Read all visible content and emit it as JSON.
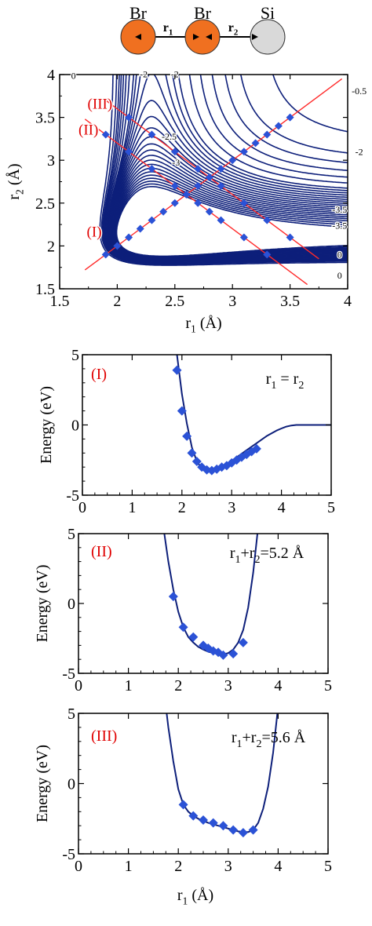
{
  "molecule": {
    "atoms": [
      {
        "symbol": "Br",
        "color": "#f07020"
      },
      {
        "symbol": "Br",
        "color": "#f07020"
      },
      {
        "symbol": "Si",
        "color": "#d9d9d9"
      }
    ],
    "bond_labels": [
      {
        "main": "r",
        "sub": "1"
      },
      {
        "main": "r",
        "sub": "2"
      }
    ]
  },
  "colors": {
    "contour": "#0d1f7a",
    "marker": "#2b52d6",
    "cut_line": "#ff2a2a",
    "cut_label": "#e00000",
    "axis": "#000000"
  },
  "chart_data": [
    {
      "id": "contour",
      "type": "contour",
      "xlabel": {
        "main": "r",
        "sub": "1",
        "unit": " (Å)"
      },
      "ylabel": {
        "main": "r",
        "sub": "2",
        "unit": " (Å)"
      },
      "xlim": [
        1.5,
        4
      ],
      "ylim": [
        1.5,
        4
      ],
      "xticks": [
        "1.5",
        "2",
        "2.5",
        "3",
        "3.5",
        "4"
      ],
      "yticks": [
        "1.5",
        "2",
        "2.5",
        "3",
        "3.5",
        "4"
      ],
      "contour_levels": [
        -3.7,
        -3.6,
        -3.5,
        -3.4,
        -3.3,
        -3.2,
        -3.1,
        -3.0,
        -2.9,
        -2.8,
        -2.7,
        -2.6,
        -2.5,
        -2.4,
        -2.3,
        -2.2,
        -2.1,
        -2.0,
        -1.9,
        -1.8,
        -1.6,
        -1.4,
        -1.2,
        -1.0,
        -0.8,
        -0.5,
        0
      ],
      "contour_labels": [
        {
          "text": "0",
          "x": 1.62,
          "y": 3.95
        },
        {
          "text": "-2",
          "x": 2.23,
          "y": 3.97
        },
        {
          "text": "-2",
          "x": 2.5,
          "y": 3.97
        },
        {
          "text": "-0.5",
          "x": 4.1,
          "y": 3.77
        },
        {
          "text": "-2.5",
          "x": 2.45,
          "y": 3.24
        },
        {
          "text": "-3",
          "x": 2.51,
          "y": 2.94
        },
        {
          "text": "-2",
          "x": 4.1,
          "y": 3.06
        },
        {
          "text": "-3.5",
          "x": 3.93,
          "y": 2.39
        },
        {
          "text": "-3.5",
          "x": 3.93,
          "y": 2.2
        },
        {
          "text": "0",
          "x": 3.93,
          "y": 1.86
        },
        {
          "text": "0",
          "x": 3.93,
          "y": 1.62
        }
      ],
      "cut_lines": [
        {
          "label": "(I)",
          "from": [
            1.72,
            1.72
          ],
          "to": [
            3.95,
            3.95
          ],
          "label_at": [
            1.8,
            2.11
          ]
        },
        {
          "label": "(II)",
          "from": [
            1.72,
            3.48
          ],
          "to": [
            3.65,
            1.55
          ],
          "label_at": [
            1.75,
            3.3
          ]
        },
        {
          "label": "(III)",
          "from": [
            1.9,
            3.7
          ],
          "to": [
            3.75,
            1.85
          ],
          "label_at": [
            1.85,
            3.6
          ]
        }
      ],
      "points": [
        {
          "cut": "I",
          "x": [
            1.9,
            2.0,
            2.1,
            2.2,
            2.3,
            2.4,
            2.5,
            2.6,
            2.7,
            2.8,
            2.9,
            3.0,
            3.1,
            3.2,
            3.3,
            3.4,
            3.5
          ],
          "y": [
            1.9,
            2.0,
            2.1,
            2.2,
            2.3,
            2.4,
            2.5,
            2.6,
            2.7,
            2.8,
            2.9,
            3.0,
            3.1,
            3.2,
            3.3,
            3.4,
            3.5
          ]
        },
        {
          "cut": "II",
          "x": [
            1.9,
            2.1,
            2.3,
            2.5,
            2.6,
            2.7,
            2.8,
            2.9,
            3.1,
            3.3
          ],
          "y": [
            3.3,
            3.1,
            2.9,
            2.7,
            2.6,
            2.5,
            2.4,
            2.3,
            2.1,
            1.9
          ]
        },
        {
          "cut": "III",
          "x": [
            2.1,
            2.3,
            2.5,
            2.7,
            2.9,
            3.1,
            3.3,
            3.5
          ],
          "y": [
            3.5,
            3.3,
            3.1,
            2.9,
            2.7,
            2.5,
            2.3,
            2.1
          ]
        }
      ]
    },
    {
      "id": "cut-I",
      "type": "line",
      "tag": "(I)",
      "condition": {
        "parts": [
          {
            "t": "r"
          },
          {
            "t": "1",
            "sub": true
          },
          {
            "t": " = r"
          },
          {
            "t": "2",
            "sub": true
          }
        ]
      },
      "xlim": [
        0,
        5
      ],
      "ylim": [
        -5,
        5
      ],
      "xticks": [
        "0",
        "1",
        "2",
        "3",
        "4",
        "5"
      ],
      "yticks": [
        "-5",
        "0",
        "5"
      ],
      "ylabel": "Energy (eV)",
      "curve": {
        "x": [
          1.9,
          2.0,
          2.1,
          2.2,
          2.3,
          2.4,
          2.5,
          2.6,
          2.7,
          2.8,
          2.9,
          3.0,
          3.1,
          3.2,
          3.3,
          3.4,
          3.5,
          3.6,
          3.7,
          3.8,
          3.9,
          4.0,
          4.1,
          4.2,
          4.3,
          4.4,
          4.6,
          4.8,
          5.0,
          5.2
        ],
        "y": [
          5.0,
          2.2,
          0.1,
          -1.6,
          -2.6,
          -3.1,
          -3.3,
          -3.35,
          -3.25,
          -3.05,
          -2.8,
          -2.55,
          -2.3,
          -2.05,
          -1.8,
          -1.55,
          -1.3,
          -1.05,
          -0.8,
          -0.6,
          -0.4,
          -0.25,
          -0.12,
          -0.04,
          0.0,
          0.0,
          0.0,
          0.0,
          0.0,
          0.0
        ]
      },
      "points": {
        "x": [
          1.9,
          2.0,
          2.1,
          2.2,
          2.3,
          2.4,
          2.5,
          2.6,
          2.7,
          2.8,
          2.9,
          3.0,
          3.1,
          3.2,
          3.3,
          3.4,
          3.5
        ],
        "y": [
          3.9,
          1.0,
          -0.8,
          -2.0,
          -2.6,
          -3.0,
          -3.2,
          -3.25,
          -3.15,
          -3.0,
          -2.9,
          -2.7,
          -2.5,
          -2.3,
          -2.1,
          -1.9,
          -1.7
        ]
      }
    },
    {
      "id": "cut-II",
      "type": "line",
      "tag": "(II)",
      "condition": {
        "parts": [
          {
            "t": "r"
          },
          {
            "t": "1",
            "sub": true
          },
          {
            "t": "+r"
          },
          {
            "t": "2",
            "sub": true
          },
          {
            "t": "=5.2 Å"
          }
        ]
      },
      "xlim": [
        0,
        5
      ],
      "ylim": [
        -5,
        5
      ],
      "xticks": [
        "0",
        "1",
        "2",
        "3",
        "4",
        "5"
      ],
      "yticks": [
        "-5",
        "0",
        "5"
      ],
      "ylabel": "Energy (eV)",
      "curve": {
        "x": [
          1.7,
          1.8,
          1.9,
          2.0,
          2.1,
          2.2,
          2.3,
          2.4,
          2.5,
          2.6,
          2.7,
          2.8,
          2.9,
          3.0,
          3.1,
          3.2,
          3.3,
          3.4,
          3.5,
          3.6
        ],
        "y": [
          5.5,
          3.0,
          1.0,
          -0.6,
          -1.7,
          -2.4,
          -2.8,
          -3.1,
          -3.3,
          -3.45,
          -3.55,
          -3.62,
          -3.65,
          -3.55,
          -3.3,
          -2.8,
          -1.9,
          -0.3,
          2.2,
          5.5
        ]
      },
      "points": {
        "x": [
          1.9,
          2.1,
          2.3,
          2.5,
          2.6,
          2.7,
          2.8,
          2.9,
          3.1,
          3.3
        ],
        "y": [
          0.5,
          -1.7,
          -2.4,
          -3.0,
          -3.2,
          -3.4,
          -3.5,
          -3.7,
          -3.6,
          -2.8
        ]
      }
    },
    {
      "id": "cut-III",
      "type": "line",
      "tag": "(III)",
      "condition": {
        "parts": [
          {
            "t": "r"
          },
          {
            "t": "1",
            "sub": true
          },
          {
            "t": "+r"
          },
          {
            "t": "2",
            "sub": true
          },
          {
            "t": "=5.6 Å"
          }
        ]
      },
      "xlim": [
        0,
        5
      ],
      "ylim": [
        -5,
        5
      ],
      "xticks": [
        "0",
        "1",
        "2",
        "3",
        "4",
        "5"
      ],
      "yticks": [
        "-5",
        "0",
        "5"
      ],
      "ylabel": "Energy (eV)",
      "xlabel": {
        "main": "r",
        "sub": "1",
        "unit": " (Å)"
      },
      "curve": {
        "x": [
          1.75,
          1.8,
          1.9,
          2.0,
          2.1,
          2.2,
          2.3,
          2.4,
          2.5,
          2.6,
          2.7,
          2.8,
          2.9,
          3.0,
          3.1,
          3.2,
          3.3,
          3.4,
          3.5,
          3.6,
          3.7,
          3.8,
          3.9,
          4.0
        ],
        "y": [
          5.5,
          4.0,
          1.6,
          -0.4,
          -1.5,
          -2.0,
          -2.3,
          -2.5,
          -2.65,
          -2.8,
          -2.9,
          -3.0,
          -3.1,
          -3.2,
          -3.3,
          -3.4,
          -3.45,
          -3.45,
          -3.3,
          -2.8,
          -1.8,
          -0.2,
          2.2,
          5.5
        ]
      },
      "points": {
        "x": [
          2.1,
          2.3,
          2.5,
          2.7,
          2.9,
          3.1,
          3.3,
          3.5
        ],
        "y": [
          -1.5,
          -2.3,
          -2.6,
          -2.8,
          -3.0,
          -3.3,
          -3.5,
          -3.3
        ]
      }
    }
  ]
}
